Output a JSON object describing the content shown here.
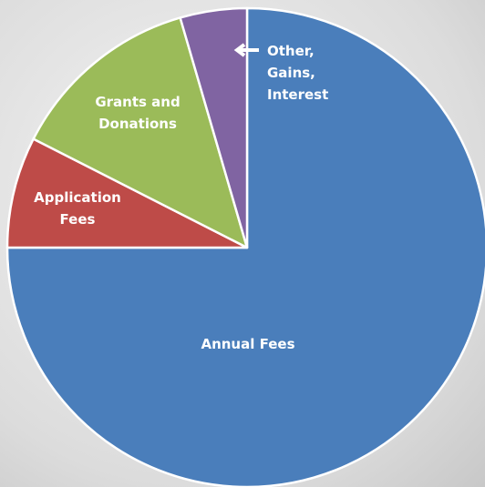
{
  "chart_data": {
    "type": "pie",
    "categories": [
      "Annual Fees",
      "Application Fees",
      "Grants and Donations",
      "Other, Gains, Interest"
    ],
    "values": [
      75,
      7.5,
      13,
      4.5
    ],
    "colors": [
      "#4a7ebb",
      "#be4b48",
      "#9bbb59",
      "#8064a2"
    ]
  }
}
